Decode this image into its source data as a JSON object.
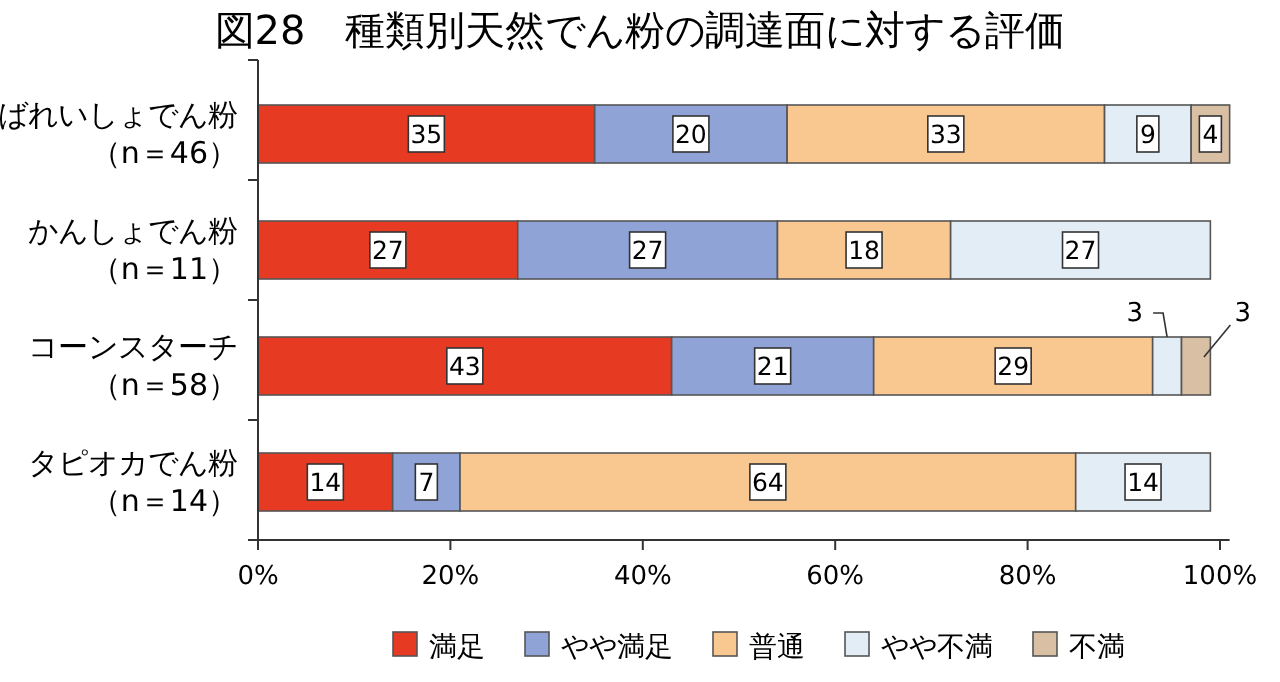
{
  "chart_data": {
    "type": "bar",
    "orientation": "horizontal",
    "stacked": true,
    "title": "図28　種類別天然でん粉の調達面に対する評価",
    "categories": [
      "ばれいしょでん粉（n＝46）",
      "かんしょでん粉（n＝11）",
      "コーンスターチ（n＝58）",
      "タピオカでん粉（n＝14）"
    ],
    "series": [
      {
        "name": "満足",
        "color": "#e63a22",
        "values": [
          35,
          27,
          43,
          14
        ]
      },
      {
        "name": "やや満足",
        "color": "#8fa3d6",
        "values": [
          20,
          27,
          21,
          7
        ]
      },
      {
        "name": "普通",
        "color": "#f8c890",
        "values": [
          33,
          18,
          29,
          64
        ]
      },
      {
        "name": "やや不満",
        "color": "#e2edf5",
        "values": [
          9,
          27,
          3,
          14
        ]
      },
      {
        "name": "不満",
        "color": "#d9bfa3",
        "values": [
          4,
          null,
          3,
          null
        ]
      }
    ],
    "xlim": [
      0,
      101
    ],
    "xticks": [
      {
        "value": 0,
        "label": "0%"
      },
      {
        "value": 20,
        "label": "20%"
      },
      {
        "value": 40,
        "label": "40%"
      },
      {
        "value": 60,
        "label": "60%"
      },
      {
        "value": 80,
        "label": "80%"
      },
      {
        "value": 100,
        "label": "100%"
      }
    ],
    "data_labels": true,
    "grid": false,
    "legend": "bottom"
  }
}
